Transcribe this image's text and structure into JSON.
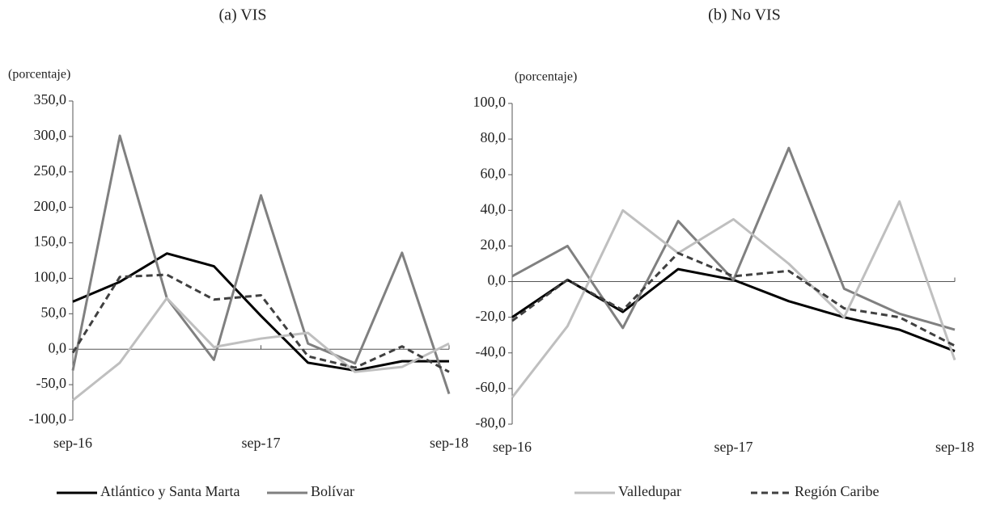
{
  "chart_data": [
    {
      "type": "line",
      "title": "(a) VIS",
      "y_label": "(porcentaje)",
      "categories": [
        "sep-16",
        null,
        null,
        null,
        "sep-17",
        null,
        null,
        null,
        "sep-18"
      ],
      "ylim": [
        -100,
        350
      ],
      "yticks": [
        {
          "value": -100,
          "label": "-100,0"
        },
        {
          "value": -50,
          "label": "-50,0"
        },
        {
          "value": 0,
          "label": "0,0"
        },
        {
          "value": 50,
          "label": "50,0"
        },
        {
          "value": 100,
          "label": "100,0"
        },
        {
          "value": 150,
          "label": "150,0"
        },
        {
          "value": 200,
          "label": "200,0"
        },
        {
          "value": 250,
          "label": "250,0"
        },
        {
          "value": 300,
          "label": "300,0"
        },
        {
          "value": 350,
          "label": "350,0"
        }
      ],
      "series": [
        {
          "name": "Atlántico y Santa Marta",
          "color": "#000000",
          "dashed": false,
          "values": [
            67,
            95,
            135,
            117,
            47,
            -19,
            -30,
            -17,
            -17
          ]
        },
        {
          "name": "Bolívar",
          "color": "#808080",
          "dashed": false,
          "values": [
            -30,
            301,
            72,
            -15,
            217,
            8,
            -20,
            136,
            -63
          ]
        },
        {
          "name": "Valledupar",
          "color": "#bfbfbf",
          "dashed": false,
          "values": [
            -72,
            -19,
            72,
            3,
            15,
            23,
            -32,
            -25,
            8
          ]
        },
        {
          "name": "Región Caribe",
          "color": "#404040",
          "dashed": true,
          "values": [
            -5,
            102,
            105,
            70,
            76,
            -10,
            -26,
            4,
            -32
          ]
        }
      ]
    },
    {
      "type": "line",
      "title": "(b) No VIS",
      "y_label": "(porcentaje)",
      "categories": [
        "sep-16",
        null,
        null,
        null,
        "sep-17",
        null,
        null,
        null,
        "sep-18"
      ],
      "ylim": [
        -80,
        100
      ],
      "yticks": [
        {
          "value": -80,
          "label": "-80,0"
        },
        {
          "value": -60,
          "label": "-60,0"
        },
        {
          "value": -40,
          "label": "-40,0"
        },
        {
          "value": -20,
          "label": "-20,0"
        },
        {
          "value": 0,
          "label": "0,0"
        },
        {
          "value": 20,
          "label": "20,0"
        },
        {
          "value": 40,
          "label": "40,0"
        },
        {
          "value": 60,
          "label": "60,0"
        },
        {
          "value": 80,
          "label": "80,0"
        },
        {
          "value": 100,
          "label": "100,0"
        }
      ],
      "series": [
        {
          "name": "Atlántico y Santa Marta",
          "color": "#000000",
          "dashed": false,
          "values": [
            -20,
            1,
            -17,
            7,
            1,
            -11,
            -20,
            -27,
            -39
          ]
        },
        {
          "name": "Bolívar",
          "color": "#808080",
          "dashed": false,
          "values": [
            3,
            20,
            -26,
            34,
            1,
            75,
            -4,
            -18,
            -27
          ]
        },
        {
          "name": "Valledupar",
          "color": "#bfbfbf",
          "dashed": false,
          "values": [
            -65,
            -25,
            40,
            16,
            35,
            10,
            -20,
            45,
            -44
          ]
        },
        {
          "name": "Región Caribe",
          "color": "#404040",
          "dashed": true,
          "values": [
            -22,
            1,
            -16,
            16,
            3,
            6,
            -15,
            -20,
            -36
          ]
        }
      ]
    }
  ]
}
